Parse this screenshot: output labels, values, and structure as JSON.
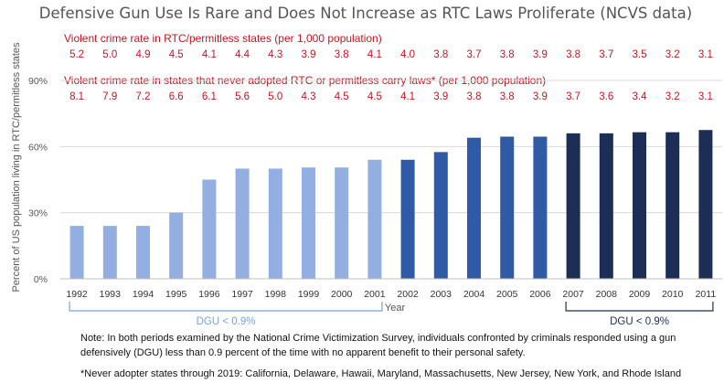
{
  "chart_data": {
    "type": "bar",
    "title": "Defensive Gun Use Is Rare and Does Not Increase as RTC Laws Proliferate (NCVS data)",
    "xlabel": "Year",
    "ylabel": "Percent of US population living in RTC/permitless states",
    "ylim": [
      0,
      90
    ],
    "yticks": [
      "0%",
      "30%",
      "60%",
      "90%"
    ],
    "ytick_values": [
      0,
      30,
      60,
      90
    ],
    "grid": true,
    "categories": [
      "1992",
      "1993",
      "1994",
      "1995",
      "1996",
      "1997",
      "1998",
      "1999",
      "2000",
      "2001",
      "2002",
      "2003",
      "2004",
      "2005",
      "2006",
      "2007",
      "2008",
      "2009",
      "2010",
      "2011"
    ],
    "values": [
      24,
      24,
      24,
      30,
      45,
      50,
      50,
      50.5,
      50.5,
      54,
      54,
      57.5,
      64,
      64.5,
      64.5,
      66,
      66,
      66.5,
      66.5,
      67.5
    ],
    "bar_colors": [
      "#93aee0",
      "#93aee0",
      "#93aee0",
      "#93aee0",
      "#93aee0",
      "#93aee0",
      "#93aee0",
      "#93aee0",
      "#93aee0",
      "#93aee0",
      "#2e5aa6",
      "#2e5aa6",
      "#2e5aa6",
      "#2e5aa6",
      "#2e5aa6",
      "#1c2e55",
      "#1c2e55",
      "#1c2e55",
      "#1c2e55",
      "#1c2e55"
    ],
    "annotation_rows": [
      {
        "label": "Violent crime rate in RTC/permitless states (per 1,000 population)",
        "values": [
          "5.2",
          "5.0",
          "4.9",
          "4.5",
          "4.1",
          "4.4",
          "4.3",
          "3.9",
          "3.8",
          "4.1",
          "4.0",
          "3.8",
          "3.7",
          "3.8",
          "3.9",
          "3.8",
          "3.7",
          "3.5",
          "3.2",
          "3.1"
        ]
      },
      {
        "label": "Violent crime rate in states that never adopted RTC or permitless carry laws* (per 1,000 population)",
        "values": [
          "8.1",
          "7.9",
          "7.2",
          "6.6",
          "6.1",
          "5.6",
          "5.0",
          "4.3",
          "4.5",
          "4.5",
          "4.1",
          "3.9",
          "3.8",
          "3.8",
          "3.9",
          "3.7",
          "3.6",
          "3.4",
          "3.2",
          "3.1"
        ]
      }
    ],
    "brackets": [
      {
        "label": "DGU < 0.9%",
        "from": "1992",
        "to": "2001",
        "color": "#7aa2e0"
      },
      {
        "label": "DGU < 0.9%",
        "from": "2007",
        "to": "2011",
        "color": "#1c2e55"
      }
    ]
  },
  "colors": {
    "title": "#555555",
    "annotation_red": "#c0181e",
    "gridline": "#d9d9d9",
    "axis": "#bfbfbf"
  },
  "note": "Note:  In both periods examined by the National Crime Victimization Survey, individuals confronted by criminals responded using a gun defensively (DGU) less than 0.9 percent of the time with no apparent benefit to their personal safety.",
  "footnote": "*Never adopter states through 2019: California, Delaware, Hawaii, Maryland, Massachusetts, New Jersey, New York, and Rhode Island"
}
